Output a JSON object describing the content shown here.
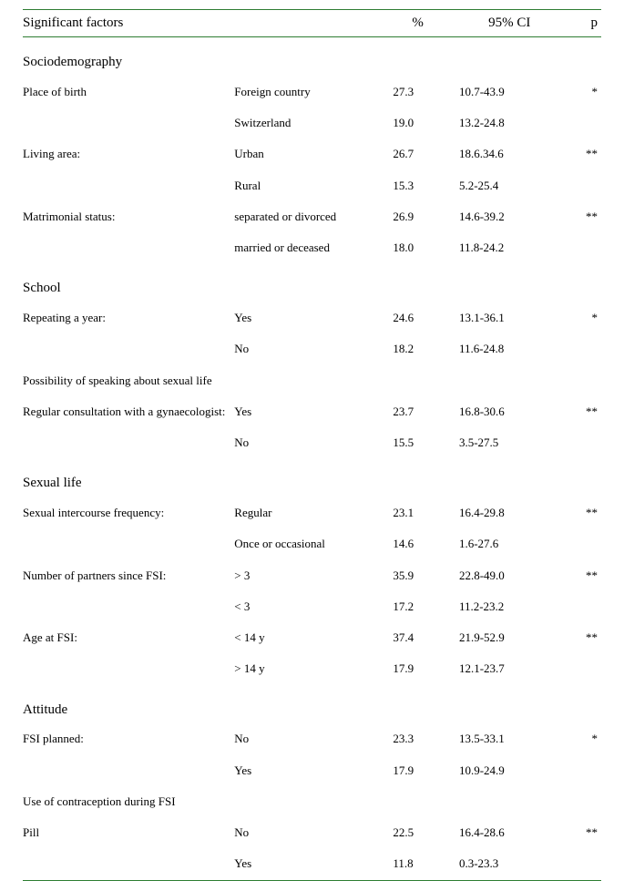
{
  "colors": {
    "rule": "#2e7d32",
    "text": "#000000",
    "background": "#ffffff"
  },
  "typography": {
    "family": "Times New Roman",
    "header_fontsize_pt": 12,
    "section_fontsize_pt": 12,
    "body_fontsize_pt": 10
  },
  "header": {
    "factors": "Significant factors",
    "pct": "%",
    "ci": "95% CI",
    "p": "p"
  },
  "sections": {
    "socio": "Sociodemography",
    "school": "School",
    "speak": "Possibility of speaking about sexual life",
    "sexual": "Sexual life",
    "attitude": "Attitude",
    "use_contra": "Use of contraception during FSI"
  },
  "rows": {
    "birth": {
      "label": "Place of birth",
      "l1": "Foreign country",
      "v1": "27.3",
      "c1": "10.7-43.9",
      "p": "*",
      "l2": "Switzerland",
      "v2": "19.0",
      "c2": "13.2-24.8"
    },
    "area": {
      "label": "Living area:",
      "l1": "Urban",
      "v1": "26.7",
      "c1": "18.6.34.6",
      "p": "**",
      "l2": "Rural",
      "v2": "15.3",
      "c2": "5.2-25.4"
    },
    "matri": {
      "label": "Matrimonial status:",
      "l1": "separated or divorced",
      "v1": "26.9",
      "c1": "14.6-39.2",
      "p": "**",
      "l2": "married or deceased",
      "v2": "18.0",
      "c2": "11.8-24.2"
    },
    "repeat": {
      "label": "Repeating a year:",
      "l1": "Yes",
      "v1": "24.6",
      "c1": "13.1-36.1",
      "p": "*",
      "l2": "No",
      "v2": "18.2",
      "c2": "11.6-24.8"
    },
    "gyn": {
      "label": "Regular consultation with a gynaecologist:",
      "l1": "Yes",
      "v1": "23.7",
      "c1": "16.8-30.6",
      "p": "**",
      "l2": "No",
      "v2": "15.5",
      "c2": "3.5-27.5"
    },
    "freq": {
      "label": "Sexual intercourse frequency:",
      "l1": "Regular",
      "v1": "23.1",
      "c1": "16.4-29.8",
      "p": "**",
      "l2": "Once or occasional",
      "v2": "14.6",
      "c2": "1.6-27.6"
    },
    "partners": {
      "label": "Number of partners since FSI:",
      "l1": "> 3",
      "v1": "35.9",
      "c1": "22.8-49.0",
      "p": "**",
      "l2": "< 3",
      "v2": "17.2",
      "c2": "11.2-23.2"
    },
    "age": {
      "label": "Age at FSI:",
      "l1": "< 14 y",
      "v1": "37.4",
      "c1": "21.9-52.9",
      "p": "**",
      "l2": "> 14 y",
      "v2": "17.9",
      "c2": "12.1-23.7"
    },
    "planned": {
      "label": "FSI planned:",
      "l1": "No",
      "v1": "23.3",
      "c1": "13.5-33.1",
      "p": "*",
      "l2": "Yes",
      "v2": "17.9",
      "c2": "10.9-24.9"
    },
    "pill": {
      "label": "Pill",
      "l1": "No",
      "v1": "22.5",
      "c1": "16.4-28.6",
      "p": "**",
      "l2": "Yes",
      "v2": "11.8",
      "c2": "0.3-23.3"
    }
  }
}
